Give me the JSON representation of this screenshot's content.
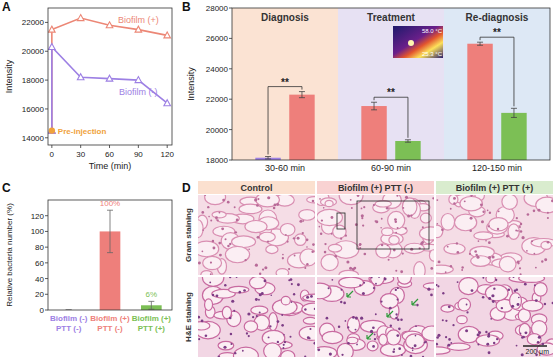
{
  "chart_data": [
    {
      "panel_label": "A",
      "type": "line",
      "y_label": "Intensity",
      "x_label": "Time (min)",
      "xlim": [
        -4,
        125
      ],
      "xticks": [
        0,
        30,
        60,
        90,
        120
      ],
      "ylim": [
        13500,
        23000
      ],
      "yticks": [
        14000,
        16000,
        18000,
        20000,
        22000
      ],
      "series": [
        {
          "name": "Biofilm (+)",
          "color": "#ec8776",
          "marker": "triangle",
          "x": [
            0,
            0,
            30,
            60,
            90,
            120
          ],
          "values": [
            14500,
            21500,
            22300,
            21800,
            21500,
            21100
          ]
        },
        {
          "name": "Biofilm (-)",
          "color": "#9d80e4",
          "marker": "triangle",
          "x": [
            0,
            0,
            30,
            60,
            90,
            120
          ],
          "values": [
            14500,
            20300,
            18200,
            18100,
            18000,
            16400
          ]
        },
        {
          "name": "Pre-injection",
          "color": "#f0a23c",
          "marker": "circle",
          "type": "scatter",
          "x": [
            0
          ],
          "values": [
            14500
          ]
        }
      ]
    },
    {
      "panel_label": "B",
      "type": "bar",
      "y_label": "Intensity",
      "categories": [
        "30-60 min",
        "60-90 min",
        "120-150 min"
      ],
      "groups": [
        "Diagnosis",
        "Treatment",
        "Re-diagnosis"
      ],
      "ylim": [
        18000,
        28000
      ],
      "yticks": [
        18000,
        20000,
        22000,
        24000,
        26000,
        28000
      ],
      "series": [
        {
          "colors": [
            "#9d80e4",
            "#ee7f7b",
            "#ee7f7b"
          ],
          "values": [
            18150,
            21550,
            25650
          ],
          "errors": [
            80,
            250,
            100
          ]
        },
        {
          "colors": [
            "#ee7f7b",
            "#7cbf55",
            "#7cbf55"
          ],
          "values": [
            22300,
            19250,
            21100
          ],
          "errors": [
            200,
            80,
            300
          ]
        }
      ],
      "annotations": [
        "**",
        "**",
        "**"
      ],
      "inset_labels": [
        "58.0 °C",
        "25.3 °C"
      ]
    },
    {
      "panel_label": "C",
      "type": "bar",
      "y_label": "Relative bacteria number (%)",
      "categories": [
        "Biofilm (-)\nPTT (-)",
        "Biofilm (+)\nPTT (-)",
        "Biofilm (+)\nPTT (+)"
      ],
      "colors": [
        "#9d80e4",
        "#ee7f7b",
        "#7cbf55"
      ],
      "values": [
        0,
        100,
        6
      ],
      "errors": [
        0,
        27,
        5
      ],
      "data_labels": true,
      "value_labels": [
        null,
        "100%",
        "6%"
      ],
      "ylim": [
        0,
        140
      ],
      "yticks": [
        0,
        20,
        40,
        60,
        80,
        100,
        120
      ]
    }
  ],
  "panel_d": {
    "panel_label": "D",
    "columns": [
      "Control",
      "Biofilm (+) PTT (-)",
      "Biofilm (+) PTT (+)"
    ],
    "rows": [
      "Gram staining",
      "H&E staining"
    ],
    "scale_bar": "200 μm"
  }
}
